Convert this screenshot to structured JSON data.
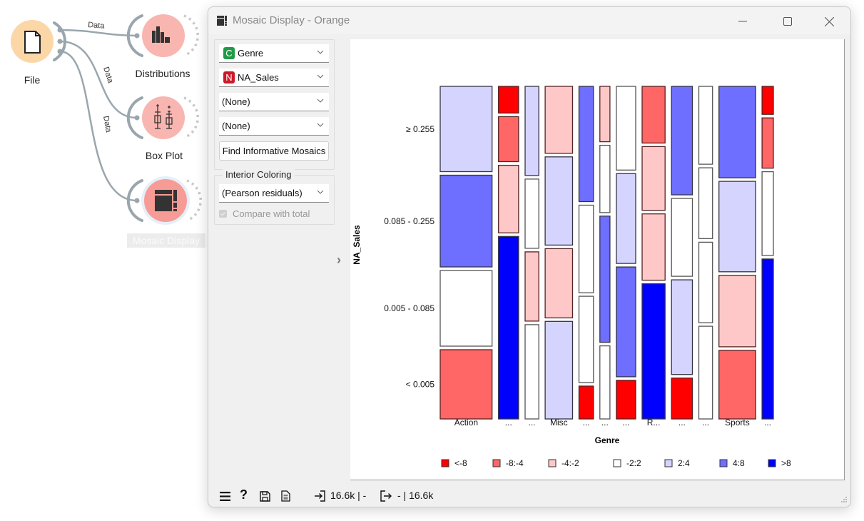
{
  "workflow": {
    "nodes": [
      {
        "label": "File",
        "color": "#fbd7a8"
      },
      {
        "label": "Distributions",
        "color": "#f9b5b0"
      },
      {
        "label": "Box Plot",
        "color": "#f9b5b0"
      },
      {
        "label": "Mosaic Display",
        "color": "#f79b96"
      }
    ],
    "links": [
      {
        "label": "Data"
      },
      {
        "label": "Data"
      },
      {
        "label": "Data"
      }
    ]
  },
  "window": {
    "title": "Mosaic Display - Orange"
  },
  "controls": {
    "variables": [
      {
        "badge": "C",
        "badge_color": "#1f9a46",
        "value": "Genre"
      },
      {
        "badge": "N",
        "badge_color": "#cc1a2a",
        "value": "NA_Sales"
      },
      {
        "badge": "",
        "value": "(None)"
      },
      {
        "badge": "",
        "value": "(None)"
      }
    ],
    "find_button": "Find Informative Mosaics",
    "interior_coloring": {
      "title": "Interior Coloring",
      "value": "(Pearson residuals)",
      "compare_label": "Compare with total",
      "compare_checked": true
    }
  },
  "status": {
    "input": "16.6k | -",
    "output": "- | 16.6k"
  },
  "chart_data": {
    "type": "mosaic",
    "xlabel": "Genre",
    "ylabel": "NA_Sales",
    "y_categories": [
      "≥ 0.255",
      "0.085 - 0.255",
      "0.005 - 0.085",
      "< 0.005"
    ],
    "legend": [
      {
        "label": "<-8",
        "color": "#ff0000"
      },
      {
        "label": "-8:-4",
        "color": "#ff6666"
      },
      {
        "label": "-4:-2",
        "color": "#ffc8c8"
      },
      {
        "label": "-2:2",
        "color": "#ffffff"
      },
      {
        "label": "2:4",
        "color": "#d4d4ff"
      },
      {
        "label": "4:8",
        "color": "#6e6eff"
      },
      {
        "label": ">8",
        "color": "#0000ff"
      }
    ],
    "columns": [
      {
        "label": "Action",
        "share": 0.201,
        "cells": [
          {
            "p": 0.265,
            "r": "2:4"
          },
          {
            "p": 0.285,
            "r": "4:8"
          },
          {
            "p": 0.235,
            "r": "-2:2"
          },
          {
            "p": 0.215,
            "r": "-8:-4"
          }
        ]
      },
      {
        "label": "...",
        "share": 0.078,
        "cells": [
          {
            "p": 0.083,
            "r": "<-8"
          },
          {
            "p": 0.14,
            "r": "-8:-4"
          },
          {
            "p": 0.21,
            "r": "-4:-2"
          },
          {
            "p": 0.567,
            "r": ">8"
          }
        ]
      },
      {
        "label": "...",
        "share": 0.053,
        "cells": [
          {
            "p": 0.277,
            "r": "2:4"
          },
          {
            "p": 0.215,
            "r": "-2:2"
          },
          {
            "p": 0.215,
            "r": "-4:-2"
          },
          {
            "p": 0.293,
            "r": "-2:2"
          }
        ]
      },
      {
        "label": "Misc",
        "share": 0.106,
        "cells": [
          {
            "p": 0.208,
            "r": "-4:-2"
          },
          {
            "p": 0.274,
            "r": "2:4"
          },
          {
            "p": 0.215,
            "r": "-4:-2"
          },
          {
            "p": 0.303,
            "r": "2:4"
          }
        ]
      },
      {
        "label": "...",
        "share": 0.056,
        "cells": [
          {
            "p": 0.358,
            "r": "4:8"
          },
          {
            "p": 0.272,
            "r": "-2:2"
          },
          {
            "p": 0.268,
            "r": "-2:2"
          },
          {
            "p": 0.102,
            "r": "<-8"
          }
        ]
      },
      {
        "label": "...",
        "share": 0.039,
        "cells": [
          {
            "p": 0.172,
            "r": "-4:-2"
          },
          {
            "p": 0.209,
            "r": "-2:2"
          },
          {
            "p": 0.392,
            "r": "4:8"
          },
          {
            "p": 0.227,
            "r": "-2:2"
          }
        ]
      },
      {
        "label": "...",
        "share": 0.075,
        "cells": [
          {
            "p": 0.26,
            "r": "-2:2"
          },
          {
            "p": 0.279,
            "r": "2:4"
          },
          {
            "p": 0.341,
            "r": "4:8"
          },
          {
            "p": 0.12,
            "r": "<-8"
          }
        ]
      },
      {
        "label": "R...",
        "share": 0.089,
        "cells": [
          {
            "p": 0.176,
            "r": "-8:-4"
          },
          {
            "p": 0.198,
            "r": "-4:-2"
          },
          {
            "p": 0.206,
            "r": "-4:-2"
          },
          {
            "p": 0.42,
            "r": ">8"
          }
        ]
      },
      {
        "label": "...",
        "share": 0.081,
        "cells": [
          {
            "p": 0.337,
            "r": "4:8"
          },
          {
            "p": 0.242,
            "r": "-2:2"
          },
          {
            "p": 0.294,
            "r": "2:4"
          },
          {
            "p": 0.127,
            "r": "<-8"
          }
        ]
      },
      {
        "label": "...",
        "share": 0.053,
        "cells": [
          {
            "p": 0.242,
            "r": "-2:2"
          },
          {
            "p": 0.22,
            "r": "-2:2"
          },
          {
            "p": 0.25,
            "r": "-2:2"
          },
          {
            "p": 0.288,
            "r": "-2:2"
          }
        ]
      },
      {
        "label": "Sports",
        "share": 0.142,
        "cells": [
          {
            "p": 0.284,
            "r": "4:8"
          },
          {
            "p": 0.281,
            "r": "2:4"
          },
          {
            "p": 0.222,
            "r": "-4:-2"
          },
          {
            "p": 0.213,
            "r": "-8:-4"
          }
        ]
      },
      {
        "label": "...",
        "share": 0.044,
        "cells": [
          {
            "p": 0.087,
            "r": "<-8"
          },
          {
            "p": 0.156,
            "r": "-8:-4"
          },
          {
            "p": 0.26,
            "r": "-2:2"
          },
          {
            "p": 0.497,
            "r": ">8"
          }
        ]
      }
    ]
  }
}
